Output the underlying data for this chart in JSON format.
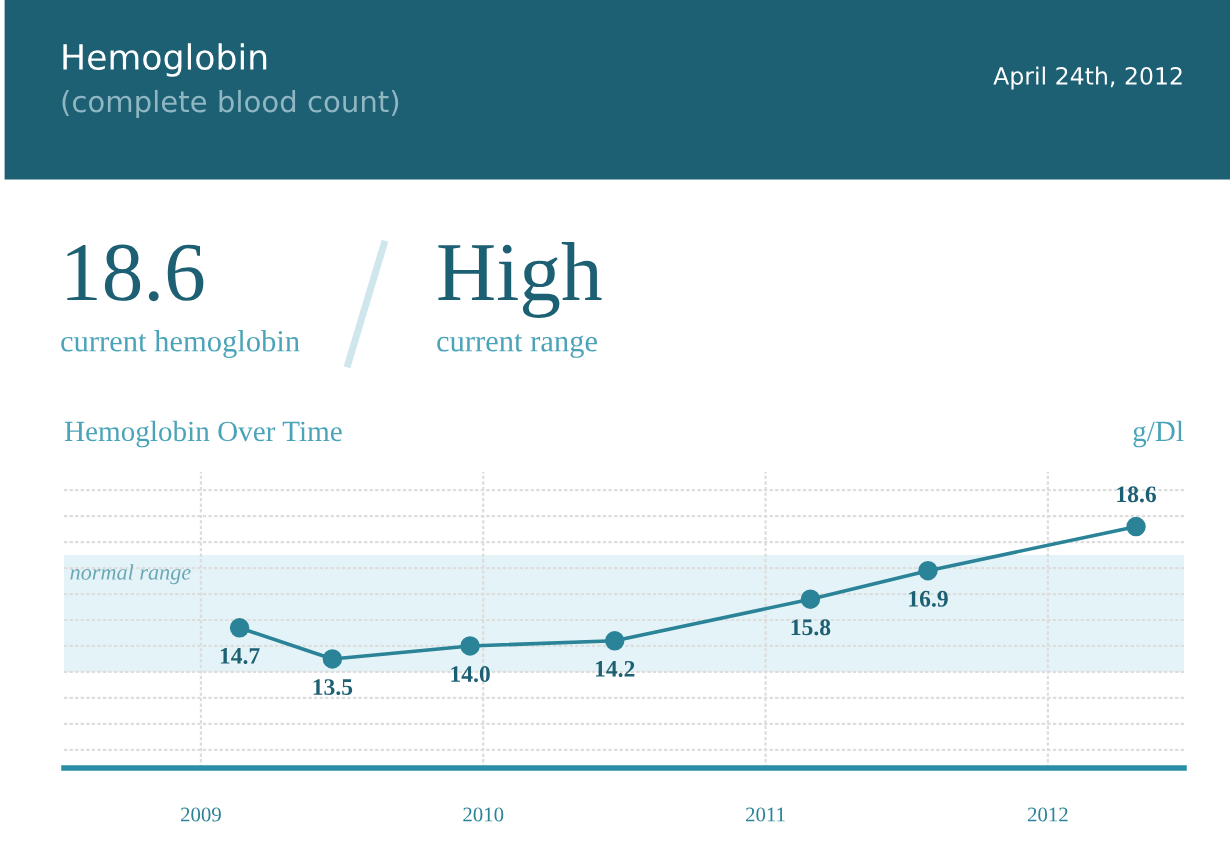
{
  "chart_data": [
    {
      "type": "other",
      "title": "Hemoglobin",
      "subtitle": "(complete blood count)",
      "annotations": [
        "April 24th, 2012",
        "18.6",
        "current hemoglobin",
        "High",
        "current range"
      ]
    },
    {
      "type": "line",
      "title": "Hemoglobin Over Time",
      "ylabel": "g/Dl",
      "x": [
        "2009-02-20",
        "2009-06-20",
        "2009-12-15",
        "2010-06-20",
        "2011-02-28",
        "2011-07-30",
        "2012-04-24"
      ],
      "series": [
        {
          "color": "#2a8397",
          "values": [
            14.7,
            13.5,
            14.0,
            14.2,
            15.8,
            16.9,
            18.6
          ],
          "value_labels": [
            "14.7",
            "13.5",
            "14.0",
            "14.2",
            "15.8",
            "16.9",
            "18.6"
          ]
        }
      ],
      "marker": "circle",
      "line_style": "solid",
      "grid": true,
      "xlim": [
        "2008-07-08",
        "2012-06-25"
      ],
      "xticks": [
        {
          "value": "2009-01-01",
          "label": "2009"
        },
        {
          "value": "2010-01-01",
          "label": "2010"
        },
        {
          "value": "2011-01-01",
          "label": "2011"
        },
        {
          "value": "2012-01-01",
          "label": "2012"
        }
      ],
      "ylim": [
        9.3,
        20.7
      ],
      "yticks": [
        {
          "value": 10,
          "label": null
        },
        {
          "value": 11,
          "label": null
        },
        {
          "value": 12,
          "label": null
        },
        {
          "value": 13,
          "label": null
        },
        {
          "value": 14,
          "label": null
        },
        {
          "value": 15,
          "label": null
        },
        {
          "value": 16,
          "label": null
        },
        {
          "value": 17,
          "label": null
        },
        {
          "value": 18,
          "label": null
        },
        {
          "value": 19,
          "label": null
        },
        {
          "value": 20,
          "label": null
        }
      ],
      "tick_labels": "x",
      "bands": [
        {
          "axis": "y",
          "from": 13.0,
          "to": 17.5,
          "label": "normal range",
          "color": "#e4f3f7"
        }
      ]
    }
  ]
}
